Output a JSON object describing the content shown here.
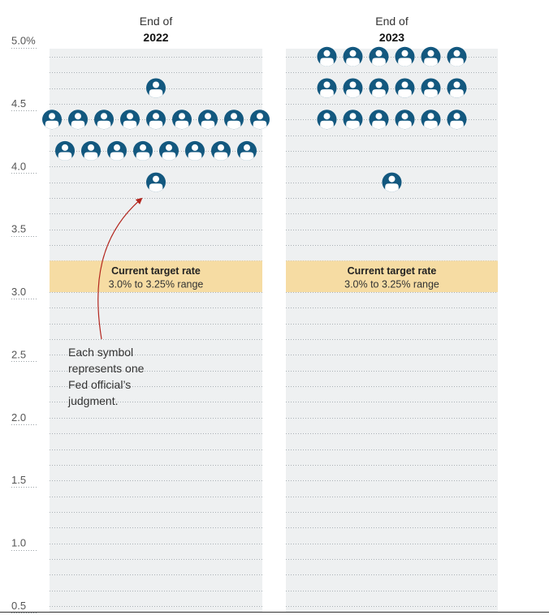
{
  "chart_data": {
    "type": "dot-plot",
    "y_axis": {
      "min": 0.5,
      "max": 5.0,
      "ticks": [
        {
          "value": 5.0,
          "label": "5.0%"
        },
        {
          "value": 4.5,
          "label": "4.5"
        },
        {
          "value": 4.0,
          "label": "4.0"
        },
        {
          "value": 3.5,
          "label": "3.5"
        },
        {
          "value": 3.0,
          "label": "3.0"
        },
        {
          "value": 2.5,
          "label": "2.5"
        },
        {
          "value": 2.0,
          "label": "2.0"
        },
        {
          "value": 1.5,
          "label": "1.5"
        },
        {
          "value": 1.0,
          "label": "1.0"
        },
        {
          "value": 0.5,
          "label": "0.5"
        }
      ],
      "gridline_step": 0.125
    },
    "columns": [
      {
        "label_top": "End of",
        "label_year": "2022",
        "dots": [
          {
            "rate": 4.625,
            "count": 1
          },
          {
            "rate": 4.375,
            "count": 9
          },
          {
            "rate": 4.125,
            "count": 8
          },
          {
            "rate": 3.875,
            "count": 1
          }
        ]
      },
      {
        "label_top": "End of",
        "label_year": "2023",
        "dots": [
          {
            "rate": 4.875,
            "count": 6
          },
          {
            "rate": 4.625,
            "count": 6
          },
          {
            "rate": 4.375,
            "count": 6
          },
          {
            "rate": 3.875,
            "count": 1
          }
        ]
      }
    ],
    "target_band": {
      "low": 3.0,
      "high": 3.25,
      "title": "Current target rate",
      "subtitle": "3.0% to 3.25% range"
    },
    "annotation": "Each symbol represents one Fed official’s judgment."
  },
  "colors": {
    "panel": "#eef0f1",
    "band": "#f6dca3",
    "dot": "#13587f",
    "arrow": "#b3261e",
    "gridline": "#a9b0b5"
  }
}
